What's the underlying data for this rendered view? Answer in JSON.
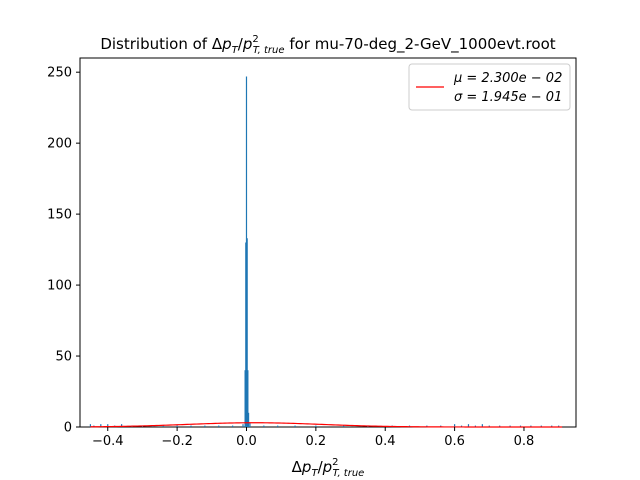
{
  "chart_data": {
    "type": "histogram",
    "title": {
      "prefix": "Distribution of ",
      "suffix": " for mu-70-deg_2-GeV_1000evt.root"
    },
    "xlabel": "Δp_T/p^2_{T,true}",
    "ylabel": "",
    "xlim": [
      -0.48,
      0.95
    ],
    "ylim": [
      0,
      260
    ],
    "xticks": [
      -0.4,
      -0.2,
      0.0,
      0.2,
      0.4,
      0.6,
      0.8
    ],
    "xtick_labels": [
      "−0.4",
      "−0.2",
      "0.0",
      "0.2",
      "0.4",
      "0.6",
      "0.8"
    ],
    "yticks": [
      0,
      50,
      100,
      150,
      200,
      250
    ],
    "ytick_labels": [
      "0",
      "50",
      "100",
      "150",
      "200",
      "250"
    ],
    "grid": false,
    "legend_position": "top-right",
    "histogram": {
      "color": "#1f77b4",
      "bins": [
        {
          "x": -0.45,
          "y": 2
        },
        {
          "x": -0.44,
          "y": 1
        },
        {
          "x": -0.42,
          "y": 2
        },
        {
          "x": -0.4,
          "y": 2
        },
        {
          "x": -0.38,
          "y": 1
        },
        {
          "x": -0.36,
          "y": 2
        },
        {
          "x": -0.33,
          "y": 1
        },
        {
          "x": -0.3,
          "y": 1
        },
        {
          "x": -0.27,
          "y": 1
        },
        {
          "x": -0.24,
          "y": 1
        },
        {
          "x": -0.2,
          "y": 1
        },
        {
          "x": -0.16,
          "y": 1
        },
        {
          "x": -0.12,
          "y": 1
        },
        {
          "x": -0.08,
          "y": 1
        },
        {
          "x": -0.04,
          "y": 1
        },
        {
          "x": -0.01,
          "y": 2
        },
        {
          "x": -0.004,
          "y": 40
        },
        {
          "x": -0.002,
          "y": 130
        },
        {
          "x": 0.0,
          "y": 247
        },
        {
          "x": 0.002,
          "y": 133
        },
        {
          "x": 0.004,
          "y": 40
        },
        {
          "x": 0.006,
          "y": 10
        },
        {
          "x": 0.01,
          "y": 3
        },
        {
          "x": 0.05,
          "y": 1
        },
        {
          "x": 0.09,
          "y": 1
        },
        {
          "x": 0.14,
          "y": 1
        },
        {
          "x": 0.2,
          "y": 1
        },
        {
          "x": 0.28,
          "y": 1
        },
        {
          "x": 0.35,
          "y": 1
        },
        {
          "x": 0.42,
          "y": 1
        },
        {
          "x": 0.47,
          "y": 1
        },
        {
          "x": 0.52,
          "y": 1
        },
        {
          "x": 0.56,
          "y": 1
        },
        {
          "x": 0.6,
          "y": 2
        },
        {
          "x": 0.62,
          "y": 1
        },
        {
          "x": 0.64,
          "y": 2
        },
        {
          "x": 0.66,
          "y": 1
        },
        {
          "x": 0.68,
          "y": 2
        },
        {
          "x": 0.7,
          "y": 1
        },
        {
          "x": 0.73,
          "y": 1
        },
        {
          "x": 0.76,
          "y": 1
        },
        {
          "x": 0.79,
          "y": 1
        },
        {
          "x": 0.82,
          "y": 1
        },
        {
          "x": 0.85,
          "y": 1
        },
        {
          "x": 0.88,
          "y": 1
        },
        {
          "x": 0.9,
          "y": 1
        }
      ]
    },
    "fit": {
      "color": "#ff0000",
      "mu": 0.023,
      "sigma": 0.1945,
      "amplitude": 3,
      "legend_mu": "μ = 2.300e − 02",
      "legend_sigma": "σ = 1.945e − 01"
    }
  }
}
